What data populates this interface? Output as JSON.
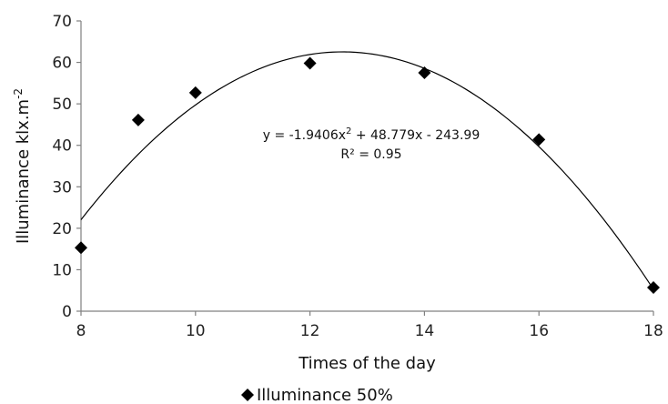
{
  "chart_data": {
    "type": "scatter",
    "xlabel": "Times of the day",
    "ylabel_main": "Illuminance klx.m",
    "ylabel_sup": "-2",
    "xlim": [
      8,
      18
    ],
    "ylim": [
      0,
      70
    ],
    "x_ticks": [
      "8",
      "10",
      "12",
      "14",
      "16",
      "18"
    ],
    "y_ticks": [
      "0",
      "10",
      "20",
      "30",
      "40",
      "50",
      "60",
      "70"
    ],
    "x_tick_values": [
      8,
      10,
      12,
      14,
      16,
      18
    ],
    "y_tick_values": [
      0,
      10,
      20,
      30,
      40,
      50,
      60,
      70
    ],
    "grid": false,
    "legend_position": "bottom",
    "series": [
      {
        "name": "Illuminance 50%",
        "marker": "diamond",
        "color": "#000000",
        "x": [
          8,
          9,
          10,
          12,
          14,
          16,
          18
        ],
        "y": [
          15.3,
          46.1,
          52.7,
          59.8,
          57.5,
          41.4,
          5.7
        ]
      }
    ],
    "trendline": {
      "type": "polynomial",
      "coefficients": [
        -1.9406,
        48.779,
        -243.99
      ],
      "equation_main": "y = -1.9406x",
      "equation_sup": "2",
      "equation_rest": " + 48.779x - 243.99",
      "r2_label": "R² = 0.95"
    }
  }
}
